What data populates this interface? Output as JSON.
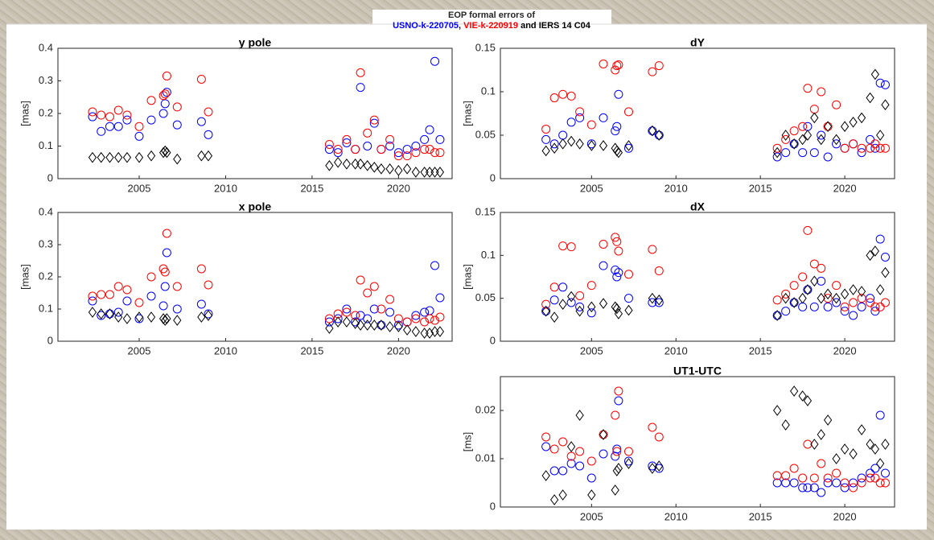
{
  "figure_title": {
    "line1": "EOP formal errors of",
    "line2": [
      {
        "text": "USNO-k-220705",
        "color": "#0000ff"
      },
      {
        "text": ", ",
        "color": "#000000"
      },
      {
        "text": "VIE-k-220919",
        "color": "#ff0000"
      },
      {
        "text": " and IERS 14 C04",
        "color": "#000000"
      }
    ]
  },
  "chart_data": [
    {
      "type": "scatter",
      "title": "y pole",
      "ylabel": "[mas]",
      "x": [
        2002.3,
        2002.8,
        2003.3,
        2003.8,
        2004.3,
        2005.0,
        2005.7,
        2006.4,
        2006.5,
        2006.6,
        2007.2,
        2008.6,
        2009.0,
        2016.0,
        2016.5,
        2017.0,
        2017.5,
        2017.8,
        2018.2,
        2018.6,
        2019.0,
        2019.5,
        2020.0,
        2020.5,
        2021.0,
        2021.5,
        2021.8,
        2022.1,
        2022.4
      ],
      "xlim": [
        2000.3,
        2023.1
      ],
      "xticks": [
        2005,
        2010,
        2015,
        2020
      ],
      "ylim": [
        0,
        0.4
      ],
      "yticks": [
        0,
        0.1,
        0.2,
        0.3,
        0.4
      ],
      "series": [
        {
          "color": "#0000ff",
          "marker": "circle",
          "values": [
            0.19,
            0.145,
            0.16,
            0.16,
            0.18,
            0.13,
            0.18,
            0.2,
            0.23,
            0.265,
            0.165,
            0.175,
            0.135,
            0.09,
            0.08,
            0.11,
            0.09,
            0.28,
            0.1,
            0.17,
            0.09,
            0.1,
            0.08,
            0.09,
            0.1,
            0.12,
            0.15,
            0.36,
            0.12
          ]
        },
        {
          "color": "#ff0000",
          "marker": "circle",
          "values": [
            0.205,
            0.195,
            0.19,
            0.21,
            0.195,
            0.16,
            0.24,
            0.255,
            0.26,
            0.315,
            0.22,
            0.305,
            0.205,
            0.105,
            0.09,
            0.12,
            0.09,
            0.325,
            0.14,
            0.18,
            0.09,
            0.12,
            0.07,
            0.07,
            0.08,
            0.09,
            0.09,
            0.08,
            0.08
          ]
        },
        {
          "color": "#000000",
          "marker": "diamond",
          "values": [
            0.065,
            0.065,
            0.065,
            0.065,
            0.065,
            0.065,
            0.07,
            0.08,
            0.085,
            0.08,
            0.06,
            0.07,
            0.07,
            0.04,
            0.05,
            0.045,
            0.045,
            0.045,
            0.04,
            0.035,
            0.03,
            0.03,
            0.025,
            0.03,
            0.02,
            0.02,
            0.02,
            0.02,
            0.02
          ]
        }
      ]
    },
    {
      "type": "scatter",
      "title": "dY",
      "ylabel": "[mas]",
      "x": [
        2002.3,
        2002.8,
        2003.3,
        2003.8,
        2004.3,
        2005.0,
        2005.7,
        2006.4,
        2006.5,
        2006.6,
        2007.2,
        2008.6,
        2009.0,
        2016.0,
        2016.5,
        2017.0,
        2017.5,
        2017.8,
        2018.2,
        2018.6,
        2019.0,
        2019.5,
        2020.0,
        2020.5,
        2021.0,
        2021.5,
        2021.8,
        2022.1,
        2022.4
      ],
      "xlim": [
        1999.6,
        2022.95
      ],
      "xticks": [
        2005,
        2010,
        2015,
        2020
      ],
      "ylim": [
        0,
        0.15
      ],
      "yticks": [
        0,
        0.05,
        0.1,
        0.15
      ],
      "series": [
        {
          "color": "#0000ff",
          "marker": "circle",
          "values": [
            0.045,
            0.04,
            0.05,
            0.065,
            0.07,
            0.04,
            0.07,
            0.055,
            0.06,
            0.097,
            0.035,
            0.055,
            0.05,
            0.025,
            0.03,
            0.04,
            0.03,
            0.06,
            0.03,
            0.05,
            0.025,
            0.04,
            0.035,
            0.04,
            0.03,
            0.045,
            0.035,
            0.11,
            0.108
          ]
        },
        {
          "color": "#ff0000",
          "marker": "circle",
          "values": [
            0.057,
            0.093,
            0.097,
            0.095,
            0.077,
            0.062,
            0.132,
            0.125,
            0.13,
            0.131,
            0.077,
            0.123,
            0.13,
            0.035,
            0.045,
            0.055,
            0.06,
            0.104,
            0.08,
            0.1,
            0.06,
            0.085,
            0.035,
            0.04,
            0.035,
            0.035,
            0.04,
            0.035,
            0.035
          ]
        },
        {
          "color": "#000000",
          "marker": "diamond",
          "values": [
            0.032,
            0.035,
            0.04,
            0.043,
            0.04,
            0.038,
            0.038,
            0.035,
            0.032,
            0.03,
            0.038,
            0.055,
            0.05,
            0.03,
            0.05,
            0.04,
            0.045,
            0.05,
            0.07,
            0.045,
            0.06,
            0.045,
            0.06,
            0.065,
            0.07,
            0.093,
            0.12,
            0.05,
            0.085
          ]
        }
      ]
    },
    {
      "type": "scatter",
      "title": "x pole",
      "ylabel": "[mas]",
      "x": [
        2002.3,
        2002.8,
        2003.3,
        2003.8,
        2004.3,
        2005.0,
        2005.7,
        2006.4,
        2006.5,
        2006.6,
        2007.2,
        2008.6,
        2009.0,
        2016.0,
        2016.5,
        2017.0,
        2017.5,
        2017.8,
        2018.2,
        2018.6,
        2019.0,
        2019.5,
        2020.0,
        2020.5,
        2021.0,
        2021.5,
        2021.8,
        2022.1,
        2022.4
      ],
      "xlim": [
        2000.3,
        2023.1
      ],
      "xticks": [
        2005,
        2010,
        2015,
        2020
      ],
      "ylim": [
        0,
        0.4
      ],
      "yticks": [
        0,
        0.1,
        0.2,
        0.3,
        0.4
      ],
      "series": [
        {
          "color": "#0000ff",
          "marker": "circle",
          "values": [
            0.125,
            0.08,
            0.085,
            0.09,
            0.125,
            0.07,
            0.14,
            0.11,
            0.17,
            0.275,
            0.1,
            0.115,
            0.085,
            0.06,
            0.07,
            0.1,
            0.06,
            0.08,
            0.07,
            0.1,
            0.05,
            0.09,
            0.05,
            0.06,
            0.08,
            0.09,
            0.095,
            0.235,
            0.135
          ]
        },
        {
          "color": "#ff0000",
          "marker": "circle",
          "values": [
            0.14,
            0.145,
            0.145,
            0.17,
            0.16,
            0.12,
            0.2,
            0.225,
            0.215,
            0.335,
            0.17,
            0.225,
            0.175,
            0.07,
            0.085,
            0.09,
            0.08,
            0.19,
            0.15,
            0.17,
            0.1,
            0.13,
            0.07,
            0.06,
            0.07,
            0.06,
            0.07,
            0.065,
            0.075
          ]
        },
        {
          "color": "#000000",
          "marker": "diamond",
          "values": [
            0.09,
            0.085,
            0.085,
            0.075,
            0.07,
            0.075,
            0.075,
            0.07,
            0.065,
            0.07,
            0.065,
            0.075,
            0.08,
            0.04,
            0.06,
            0.06,
            0.055,
            0.05,
            0.05,
            0.05,
            0.05,
            0.045,
            0.045,
            0.035,
            0.03,
            0.025,
            0.025,
            0.03,
            0.03
          ]
        }
      ]
    },
    {
      "type": "scatter",
      "title": "dX",
      "ylabel": "[mas]",
      "x": [
        2002.3,
        2002.8,
        2003.3,
        2003.8,
        2004.3,
        2005.0,
        2005.7,
        2006.4,
        2006.5,
        2006.6,
        2007.2,
        2008.6,
        2009.0,
        2016.0,
        2016.5,
        2017.0,
        2017.5,
        2017.8,
        2018.2,
        2018.6,
        2019.0,
        2019.5,
        2020.0,
        2020.5,
        2021.0,
        2021.5,
        2021.8,
        2022.1,
        2022.4
      ],
      "xlim": [
        1999.6,
        2022.95
      ],
      "xticks": [
        2005,
        2010,
        2015,
        2020
      ],
      "ylim": [
        0,
        0.15
      ],
      "yticks": [
        0,
        0.05,
        0.1,
        0.15
      ],
      "series": [
        {
          "color": "#0000ff",
          "marker": "circle",
          "values": [
            0.035,
            0.048,
            0.063,
            0.045,
            0.04,
            0.033,
            0.088,
            0.083,
            0.075,
            0.08,
            0.05,
            0.045,
            0.045,
            0.03,
            0.035,
            0.045,
            0.04,
            0.06,
            0.04,
            0.07,
            0.04,
            0.045,
            0.035,
            0.03,
            0.04,
            0.05,
            0.035,
            0.119,
            0.098
          ]
        },
        {
          "color": "#ff0000",
          "marker": "circle",
          "values": [
            0.043,
            0.063,
            0.111,
            0.11,
            0.053,
            0.065,
            0.113,
            0.121,
            0.116,
            0.105,
            0.078,
            0.107,
            0.082,
            0.048,
            0.055,
            0.065,
            0.075,
            0.129,
            0.09,
            0.085,
            0.05,
            0.065,
            0.04,
            0.045,
            0.05,
            0.045,
            0.04,
            0.04,
            0.045
          ]
        },
        {
          "color": "#000000",
          "marker": "diamond",
          "values": [
            0.035,
            0.028,
            0.043,
            0.052,
            0.035,
            0.04,
            0.044,
            0.04,
            0.038,
            0.032,
            0.036,
            0.05,
            0.048,
            0.03,
            0.05,
            0.045,
            0.05,
            0.06,
            0.07,
            0.05,
            0.055,
            0.05,
            0.055,
            0.06,
            0.058,
            0.1,
            0.105,
            0.06,
            0.08
          ]
        }
      ]
    },
    {
      "type": "scatter",
      "title": "UT1-UTC",
      "ylabel": "[ms]",
      "x": [
        2002.3,
        2002.8,
        2003.3,
        2003.8,
        2004.3,
        2005.0,
        2005.7,
        2006.4,
        2006.5,
        2006.6,
        2007.2,
        2008.6,
        2009.0,
        2016.0,
        2016.5,
        2017.0,
        2017.5,
        2017.8,
        2018.2,
        2018.6,
        2019.0,
        2019.5,
        2020.0,
        2020.5,
        2021.0,
        2021.5,
        2021.8,
        2022.1,
        2022.4
      ],
      "xlim": [
        1999.6,
        2022.95
      ],
      "xticks": [
        2005,
        2010,
        2015,
        2020
      ],
      "ylim": [
        0,
        0.027
      ],
      "yticks": [
        0,
        0.01,
        0.02
      ],
      "series": [
        {
          "color": "#0000ff",
          "marker": "circle",
          "values": [
            0.0125,
            0.0075,
            0.0075,
            0.009,
            0.0085,
            0.006,
            0.011,
            0.0105,
            0.012,
            0.022,
            0.0095,
            0.0085,
            0.008,
            0.005,
            0.005,
            0.005,
            0.004,
            0.004,
            0.004,
            0.003,
            0.005,
            0.005,
            0.004,
            0.005,
            0.006,
            0.007,
            0.008,
            0.019,
            0.007
          ]
        },
        {
          "color": "#ff0000",
          "marker": "circle",
          "values": [
            0.0145,
            0.012,
            0.0135,
            0.0105,
            0.0115,
            0.0095,
            0.015,
            0.019,
            0.0115,
            0.024,
            0.0115,
            0.0165,
            0.0145,
            0.0065,
            0.0065,
            0.008,
            0.006,
            0.013,
            0.006,
            0.009,
            0.006,
            0.007,
            0.005,
            0.004,
            0.005,
            0.006,
            0.006,
            0.005,
            0.005
          ]
        },
        {
          "color": "#000000",
          "marker": "diamond",
          "values": [
            0.0065,
            0.0015,
            0.0025,
            0.0125,
            0.019,
            0.0025,
            0.015,
            0.0035,
            0.0075,
            0.008,
            0.009,
            0.008,
            0.0085,
            0.02,
            0.017,
            0.024,
            0.023,
            0.022,
            0.013,
            0.015,
            0.018,
            0.01,
            0.012,
            0.011,
            0.016,
            0.013,
            0.012,
            0.009,
            0.013
          ]
        }
      ]
    }
  ]
}
